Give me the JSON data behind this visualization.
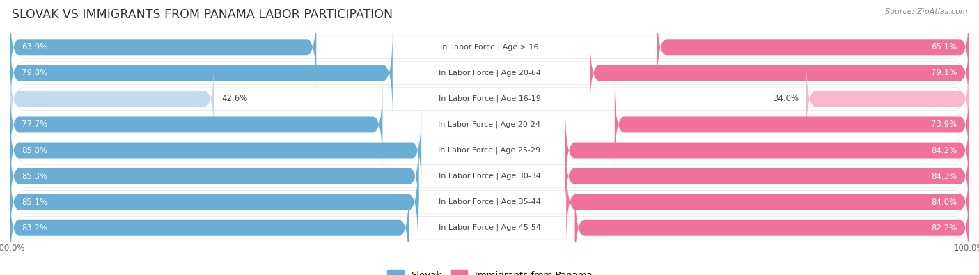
{
  "title": "SLOVAK VS IMMIGRANTS FROM PANAMA LABOR PARTICIPATION",
  "source": "Source: ZipAtlas.com",
  "categories": [
    "In Labor Force | Age > 16",
    "In Labor Force | Age 20-64",
    "In Labor Force | Age 16-19",
    "In Labor Force | Age 20-24",
    "In Labor Force | Age 25-29",
    "In Labor Force | Age 30-34",
    "In Labor Force | Age 35-44",
    "In Labor Force | Age 45-54"
  ],
  "slovak_values": [
    63.9,
    79.8,
    42.6,
    77.7,
    85.8,
    85.3,
    85.1,
    83.2
  ],
  "panama_values": [
    65.1,
    79.1,
    34.0,
    73.9,
    84.2,
    84.3,
    84.0,
    82.2
  ],
  "slovak_color": "#6aaed6",
  "slovak_color_light": "#c6d9ef",
  "panama_color": "#f0719a",
  "panama_color_light": "#f5b8cc",
  "row_bg": "#e8e8e8",
  "label_color": "#444444",
  "max_value": 100.0,
  "legend_slovak": "Slovak",
  "legend_panama": "Immigrants from Panama",
  "title_fontsize": 12.5,
  "label_fontsize": 8.0,
  "value_fontsize": 8.5,
  "axis_label_fontsize": 8.5
}
